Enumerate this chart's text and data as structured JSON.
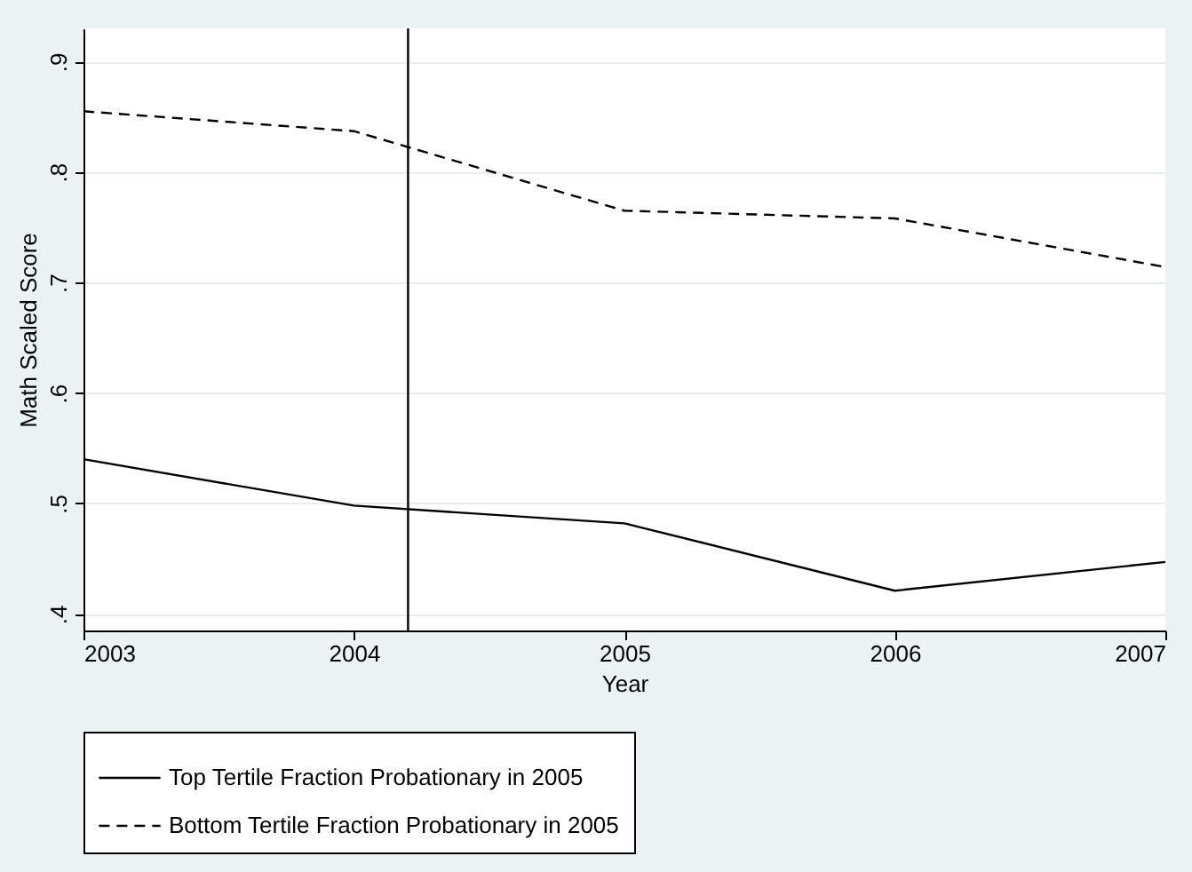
{
  "chart_data": {
    "type": "line",
    "xlabel": "Year",
    "ylabel": "Math Scaled Score",
    "x": [
      2003,
      2004,
      2005,
      2006,
      2007
    ],
    "series": [
      {
        "name": "Top Tertile Fraction Probationary in 2005",
        "color": "#000000",
        "line_style": "solid",
        "values": [
          0.54,
          0.498,
          0.482,
          0.421,
          0.447
        ]
      },
      {
        "name": "Bottom Tertile Fraction Probationary in 2005",
        "color": "#000000",
        "line_style": "dashed",
        "values": [
          0.855,
          0.837,
          0.765,
          0.758,
          0.714
        ]
      }
    ],
    "xlim": [
      2003,
      2007
    ],
    "xticks": [
      2003,
      2004,
      2005,
      2006,
      2007
    ],
    "ylim": [
      0.385,
      0.93
    ],
    "yticks": [
      {
        "value": 0.4,
        "label": ".4"
      },
      {
        "value": 0.5,
        "label": ".5"
      },
      {
        "value": 0.6,
        "label": ".6"
      },
      {
        "value": 0.7,
        "label": ".7"
      },
      {
        "value": 0.8,
        "label": ".8"
      },
      {
        "value": 0.9,
        "label": ".9"
      }
    ],
    "ref_lines": [
      {
        "axis": "x",
        "value": 2004.2,
        "color": "#000000"
      }
    ],
    "grid": "y",
    "legend": "bottom",
    "marker": "none"
  }
}
